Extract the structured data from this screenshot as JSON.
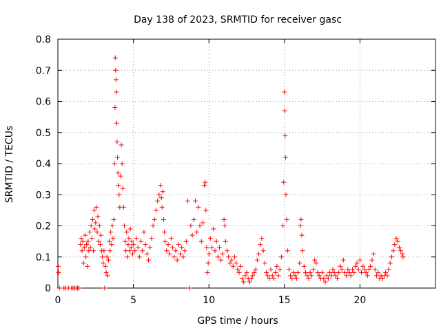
{
  "chart_data": {
    "type": "scatter",
    "title": "Day 138 of 2023, SRMTID for receiver gasc",
    "xlabel": "GPS time / hours",
    "ylabel": "SRMTID / TECUs",
    "xlim": [
      0,
      25
    ],
    "ylim": [
      0,
      0.8
    ],
    "xticks": [
      0,
      5,
      10,
      15,
      20
    ],
    "yticks": [
      0,
      0.1,
      0.2,
      0.3,
      0.4,
      0.5,
      0.6,
      0.7,
      0.8
    ],
    "ytick_labels": [
      "0",
      "0.1",
      "0.2",
      "0.3",
      "0.4",
      "0.5",
      "0.6",
      "0.7",
      "0.8"
    ],
    "grid": true,
    "marker": "+",
    "color": "#ff0000",
    "series": [
      {
        "name": "SRMTID",
        "points": [
          [
            0.02,
            0.07
          ],
          [
            0.05,
            0.05
          ],
          [
            0.1,
            0.0
          ],
          [
            0.4,
            0.0
          ],
          [
            0.5,
            0.0
          ],
          [
            0.7,
            0.0
          ],
          [
            0.9,
            0.0
          ],
          [
            1.0,
            0.0
          ],
          [
            1.1,
            0.0
          ],
          [
            1.2,
            0.0
          ],
          [
            1.3,
            0.0
          ],
          [
            1.4,
            0.0
          ],
          [
            1.5,
            0.14
          ],
          [
            1.55,
            0.16
          ],
          [
            1.6,
            0.12
          ],
          [
            1.65,
            0.15
          ],
          [
            1.7,
            0.08
          ],
          [
            1.75,
            0.13
          ],
          [
            1.8,
            0.17
          ],
          [
            1.85,
            0.1
          ],
          [
            1.9,
            0.14
          ],
          [
            1.95,
            0.07
          ],
          [
            2.0,
            0.15
          ],
          [
            2.05,
            0.12
          ],
          [
            2.1,
            0.18
          ],
          [
            2.15,
            0.13
          ],
          [
            2.2,
            0.2
          ],
          [
            2.25,
            0.16
          ],
          [
            2.3,
            0.22
          ],
          [
            2.35,
            0.12
          ],
          [
            2.4,
            0.25
          ],
          [
            2.45,
            0.19
          ],
          [
            2.5,
            0.21
          ],
          [
            2.55,
            0.26
          ],
          [
            2.6,
            0.18
          ],
          [
            2.65,
            0.23
          ],
          [
            2.7,
            0.15
          ],
          [
            2.75,
            0.2
          ],
          [
            2.8,
            0.14
          ],
          [
            2.85,
            0.17
          ],
          [
            2.9,
            0.12
          ],
          [
            2.95,
            0.1
          ],
          [
            3.0,
            0.08
          ],
          [
            3.05,
            0.12
          ],
          [
            3.1,
            0.0
          ],
          [
            3.15,
            0.07
          ],
          [
            3.2,
            0.05
          ],
          [
            3.25,
            0.1
          ],
          [
            3.3,
            0.04
          ],
          [
            3.35,
            0.09
          ],
          [
            3.4,
            0.15
          ],
          [
            3.45,
            0.12
          ],
          [
            3.5,
            0.18
          ],
          [
            3.55,
            0.14
          ],
          [
            3.6,
            0.2
          ],
          [
            3.65,
            0.16
          ],
          [
            3.7,
            0.22
          ],
          [
            3.75,
            0.4
          ],
          [
            3.78,
            0.58
          ],
          [
            3.8,
            0.74
          ],
          [
            3.82,
            0.7
          ],
          [
            3.85,
            0.67
          ],
          [
            3.88,
            0.63
          ],
          [
            3.9,
            0.53
          ],
          [
            3.92,
            0.47
          ],
          [
            3.95,
            0.42
          ],
          [
            3.98,
            0.37
          ],
          [
            4.0,
            0.33
          ],
          [
            4.05,
            0.3
          ],
          [
            4.1,
            0.26
          ],
          [
            4.15,
            0.36
          ],
          [
            4.2,
            0.46
          ],
          [
            4.25,
            0.4
          ],
          [
            4.3,
            0.32
          ],
          [
            4.35,
            0.26
          ],
          [
            4.4,
            0.2
          ],
          [
            4.45,
            0.15
          ],
          [
            4.5,
            0.12
          ],
          [
            4.55,
            0.18
          ],
          [
            4.6,
            0.1
          ],
          [
            4.65,
            0.14
          ],
          [
            4.7,
            0.16
          ],
          [
            4.75,
            0.12
          ],
          [
            4.8,
            0.19
          ],
          [
            4.85,
            0.13
          ],
          [
            4.9,
            0.15
          ],
          [
            4.95,
            0.11
          ],
          [
            5.0,
            0.14
          ],
          [
            5.1,
            0.12
          ],
          [
            5.2,
            0.16
          ],
          [
            5.3,
            0.13
          ],
          [
            5.4,
            0.1
          ],
          [
            5.5,
            0.15
          ],
          [
            5.6,
            0.12
          ],
          [
            5.7,
            0.18
          ],
          [
            5.8,
            0.14
          ],
          [
            5.9,
            0.11
          ],
          [
            6.0,
            0.09
          ],
          [
            6.1,
            0.13
          ],
          [
            6.2,
            0.16
          ],
          [
            6.3,
            0.2
          ],
          [
            6.4,
            0.22
          ],
          [
            6.5,
            0.25
          ],
          [
            6.6,
            0.28
          ],
          [
            6.7,
            0.3
          ],
          [
            6.8,
            0.33
          ],
          [
            6.85,
            0.29
          ],
          [
            6.9,
            0.26
          ],
          [
            6.95,
            0.31
          ],
          [
            7.0,
            0.22
          ],
          [
            7.05,
            0.18
          ],
          [
            7.1,
            0.15
          ],
          [
            7.2,
            0.12
          ],
          [
            7.3,
            0.14
          ],
          [
            7.4,
            0.11
          ],
          [
            7.5,
            0.16
          ],
          [
            7.6,
            0.13
          ],
          [
            7.7,
            0.1
          ],
          [
            7.8,
            0.12
          ],
          [
            7.9,
            0.09
          ],
          [
            8.0,
            0.14
          ],
          [
            8.1,
            0.11
          ],
          [
            8.2,
            0.13
          ],
          [
            8.3,
            0.1
          ],
          [
            8.4,
            0.12
          ],
          [
            8.5,
            0.15
          ],
          [
            8.6,
            0.28
          ],
          [
            8.7,
            0.0
          ],
          [
            8.8,
            0.2
          ],
          [
            8.9,
            0.17
          ],
          [
            9.0,
            0.22
          ],
          [
            9.1,
            0.28
          ],
          [
            9.2,
            0.18
          ],
          [
            9.3,
            0.26
          ],
          [
            9.4,
            0.2
          ],
          [
            9.5,
            0.15
          ],
          [
            9.6,
            0.21
          ],
          [
            9.7,
            0.33
          ],
          [
            9.75,
            0.34
          ],
          [
            9.8,
            0.25
          ],
          [
            9.85,
            0.13
          ],
          [
            9.9,
            0.05
          ],
          [
            9.95,
            0.08
          ],
          [
            10.0,
            0.11
          ],
          [
            10.1,
            0.16
          ],
          [
            10.2,
            0.13
          ],
          [
            10.3,
            0.19
          ],
          [
            10.4,
            0.12
          ],
          [
            10.5,
            0.15
          ],
          [
            10.6,
            0.1
          ],
          [
            10.7,
            0.13
          ],
          [
            10.8,
            0.09
          ],
          [
            10.9,
            0.11
          ],
          [
            11.0,
            0.22
          ],
          [
            11.05,
            0.2
          ],
          [
            11.1,
            0.15
          ],
          [
            11.2,
            0.12
          ],
          [
            11.3,
            0.1
          ],
          [
            11.4,
            0.08
          ],
          [
            11.5,
            0.09
          ],
          [
            11.6,
            0.07
          ],
          [
            11.7,
            0.1
          ],
          [
            11.8,
            0.08
          ],
          [
            11.9,
            0.06
          ],
          [
            12.0,
            0.05
          ],
          [
            12.1,
            0.07
          ],
          [
            12.2,
            0.03
          ],
          [
            12.3,
            0.02
          ],
          [
            12.4,
            0.04
          ],
          [
            12.5,
            0.05
          ],
          [
            12.6,
            0.03
          ],
          [
            12.7,
            0.02
          ],
          [
            12.8,
            0.03
          ],
          [
            12.9,
            0.04
          ],
          [
            13.0,
            0.05
          ],
          [
            13.1,
            0.06
          ],
          [
            13.2,
            0.09
          ],
          [
            13.3,
            0.11
          ],
          [
            13.4,
            0.14
          ],
          [
            13.5,
            0.16
          ],
          [
            13.6,
            0.12
          ],
          [
            13.7,
            0.08
          ],
          [
            13.8,
            0.05
          ],
          [
            13.9,
            0.04
          ],
          [
            14.0,
            0.03
          ],
          [
            14.1,
            0.06
          ],
          [
            14.2,
            0.04
          ],
          [
            14.3,
            0.03
          ],
          [
            14.4,
            0.05
          ],
          [
            14.5,
            0.07
          ],
          [
            14.6,
            0.04
          ],
          [
            14.7,
            0.06
          ],
          [
            14.8,
            0.1
          ],
          [
            14.9,
            0.2
          ],
          [
            14.95,
            0.34
          ],
          [
            15.0,
            0.63
          ],
          [
            15.02,
            0.57
          ],
          [
            15.05,
            0.49
          ],
          [
            15.08,
            0.42
          ],
          [
            15.1,
            0.3
          ],
          [
            15.15,
            0.22
          ],
          [
            15.2,
            0.12
          ],
          [
            15.3,
            0.06
          ],
          [
            15.4,
            0.04
          ],
          [
            15.5,
            0.03
          ],
          [
            15.6,
            0.05
          ],
          [
            15.7,
            0.04
          ],
          [
            15.8,
            0.03
          ],
          [
            15.9,
            0.05
          ],
          [
            16.0,
            0.08
          ],
          [
            16.05,
            0.2
          ],
          [
            16.1,
            0.22
          ],
          [
            16.15,
            0.17
          ],
          [
            16.2,
            0.12
          ],
          [
            16.3,
            0.07
          ],
          [
            16.4,
            0.05
          ],
          [
            16.5,
            0.04
          ],
          [
            16.6,
            0.03
          ],
          [
            16.7,
            0.05
          ],
          [
            16.8,
            0.04
          ],
          [
            16.9,
            0.06
          ],
          [
            17.0,
            0.09
          ],
          [
            17.1,
            0.08
          ],
          [
            17.2,
            0.05
          ],
          [
            17.3,
            0.04
          ],
          [
            17.4,
            0.03
          ],
          [
            17.5,
            0.05
          ],
          [
            17.6,
            0.03
          ],
          [
            17.7,
            0.02
          ],
          [
            17.8,
            0.04
          ],
          [
            17.9,
            0.03
          ],
          [
            18.0,
            0.05
          ],
          [
            18.1,
            0.04
          ],
          [
            18.2,
            0.06
          ],
          [
            18.3,
            0.05
          ],
          [
            18.4,
            0.04
          ],
          [
            18.5,
            0.03
          ],
          [
            18.6,
            0.05
          ],
          [
            18.7,
            0.07
          ],
          [
            18.8,
            0.06
          ],
          [
            18.9,
            0.09
          ],
          [
            19.0,
            0.05
          ],
          [
            19.1,
            0.04
          ],
          [
            19.2,
            0.06
          ],
          [
            19.3,
            0.05
          ],
          [
            19.4,
            0.04
          ],
          [
            19.5,
            0.06
          ],
          [
            19.6,
            0.05
          ],
          [
            19.7,
            0.07
          ],
          [
            19.8,
            0.08
          ],
          [
            19.9,
            0.06
          ],
          [
            20.0,
            0.09
          ],
          [
            20.1,
            0.05
          ],
          [
            20.2,
            0.07
          ],
          [
            20.3,
            0.06
          ],
          [
            20.4,
            0.05
          ],
          [
            20.5,
            0.04
          ],
          [
            20.6,
            0.06
          ],
          [
            20.7,
            0.07
          ],
          [
            20.8,
            0.09
          ],
          [
            20.9,
            0.11
          ],
          [
            21.0,
            0.06
          ],
          [
            21.1,
            0.04
          ],
          [
            21.2,
            0.05
          ],
          [
            21.3,
            0.03
          ],
          [
            21.4,
            0.04
          ],
          [
            21.5,
            0.03
          ],
          [
            21.6,
            0.04
          ],
          [
            21.7,
            0.05
          ],
          [
            21.8,
            0.04
          ],
          [
            21.9,
            0.06
          ],
          [
            22.0,
            0.08
          ],
          [
            22.1,
            0.1
          ],
          [
            22.2,
            0.12
          ],
          [
            22.3,
            0.14
          ],
          [
            22.4,
            0.16
          ],
          [
            22.5,
            0.15
          ],
          [
            22.6,
            0.13
          ],
          [
            22.7,
            0.12
          ],
          [
            22.8,
            0.11
          ],
          [
            22.85,
            0.1
          ]
        ]
      }
    ]
  }
}
